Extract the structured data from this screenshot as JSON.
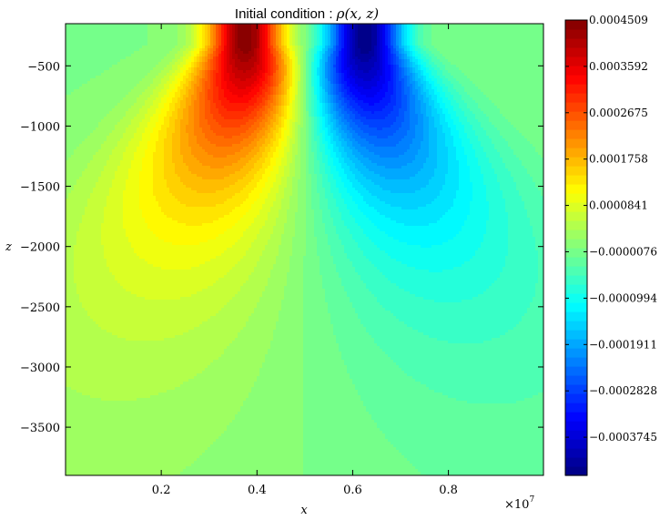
{
  "chart_data": {
    "type": "heatmap",
    "title_text": "Initial condition : ",
    "title_math": "ρ(x, z)",
    "xlabel": "x",
    "ylabel": "z",
    "x_multiplier": "×10",
    "x_multiplier_exp": "7",
    "xlim": [
      0,
      0.9986
    ],
    "ylim": [
      -3900,
      -150
    ],
    "x_ticks": [
      {
        "value": 0.2,
        "label": "0.2"
      },
      {
        "value": 0.4,
        "label": "0.4"
      },
      {
        "value": 0.6,
        "label": "0.6"
      },
      {
        "value": 0.8,
        "label": "0.8"
      }
    ],
    "y_ticks": [
      {
        "value": -500,
        "label": "−500"
      },
      {
        "value": -1000,
        "label": "−1000"
      },
      {
        "value": -1500,
        "label": "−1500"
      },
      {
        "value": -2000,
        "label": "−2000"
      },
      {
        "value": -2500,
        "label": "−2500"
      },
      {
        "value": -3000,
        "label": "−3000"
      },
      {
        "value": -3500,
        "label": "−3500"
      }
    ],
    "field": {
      "description_positive_lobe_center_x": 0.375,
      "negative_lobe_center_x": 0.625,
      "extremum_z": -320,
      "max": 0.0004509,
      "min": -0.00045
    },
    "colorbar": {
      "cmap": "jet",
      "range": [
        -0.00045,
        0.0004509
      ],
      "ticks": [
        {
          "value": 0.0004509,
          "label": "0.0004509"
        },
        {
          "value": 0.0003592,
          "label": "0.0003592"
        },
        {
          "value": 0.0002675,
          "label": "0.0002675"
        },
        {
          "value": 0.0001758,
          "label": "0.0001758"
        },
        {
          "value": 8.41e-05,
          "label": "0.0000841"
        },
        {
          "value": -7.6e-06,
          "label": "−0.0000076"
        },
        {
          "value": -9.94e-05,
          "label": "−0.0000994"
        },
        {
          "value": -0.0001911,
          "label": "−0.0001911"
        },
        {
          "value": -0.0002828,
          "label": "−0.0002828"
        },
        {
          "value": -0.0003745,
          "label": "−0.0003745"
        }
      ]
    },
    "levels": 50,
    "grid": false
  }
}
